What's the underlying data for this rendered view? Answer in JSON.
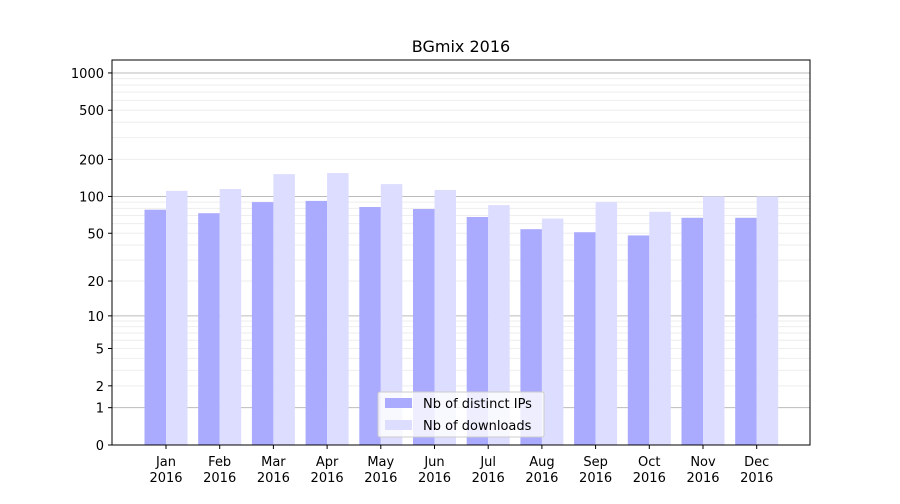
{
  "chart_data": {
    "type": "bar",
    "title": "BGmix 2016",
    "xlabel": "",
    "ylabel": "",
    "yscale": "symlog",
    "ylim": [
      0,
      1300
    ],
    "yticks": [
      0,
      1,
      2,
      5,
      10,
      20,
      50,
      100,
      200,
      500,
      1000
    ],
    "grid": true,
    "legend_position": "lower-center",
    "categories": [
      "Jan\n2016",
      "Feb\n2016",
      "Mar\n2016",
      "Apr\n2016",
      "May\n2016",
      "Jun\n2016",
      "Jul\n2016",
      "Aug\n2016",
      "Sep\n2016",
      "Oct\n2016",
      "Nov\n2016",
      "Dec\n2016"
    ],
    "series": [
      {
        "name": "Nb of distinct IPs",
        "color": "#aaaaff",
        "values": [
          78,
          73,
          90,
          92,
          82,
          79,
          68,
          54,
          51,
          48,
          67,
          67
        ]
      },
      {
        "name": "Nb of downloads",
        "color": "#ddddff",
        "values": [
          111,
          115,
          152,
          155,
          126,
          113,
          85,
          66,
          90,
          75,
          100,
          100
        ]
      }
    ]
  }
}
